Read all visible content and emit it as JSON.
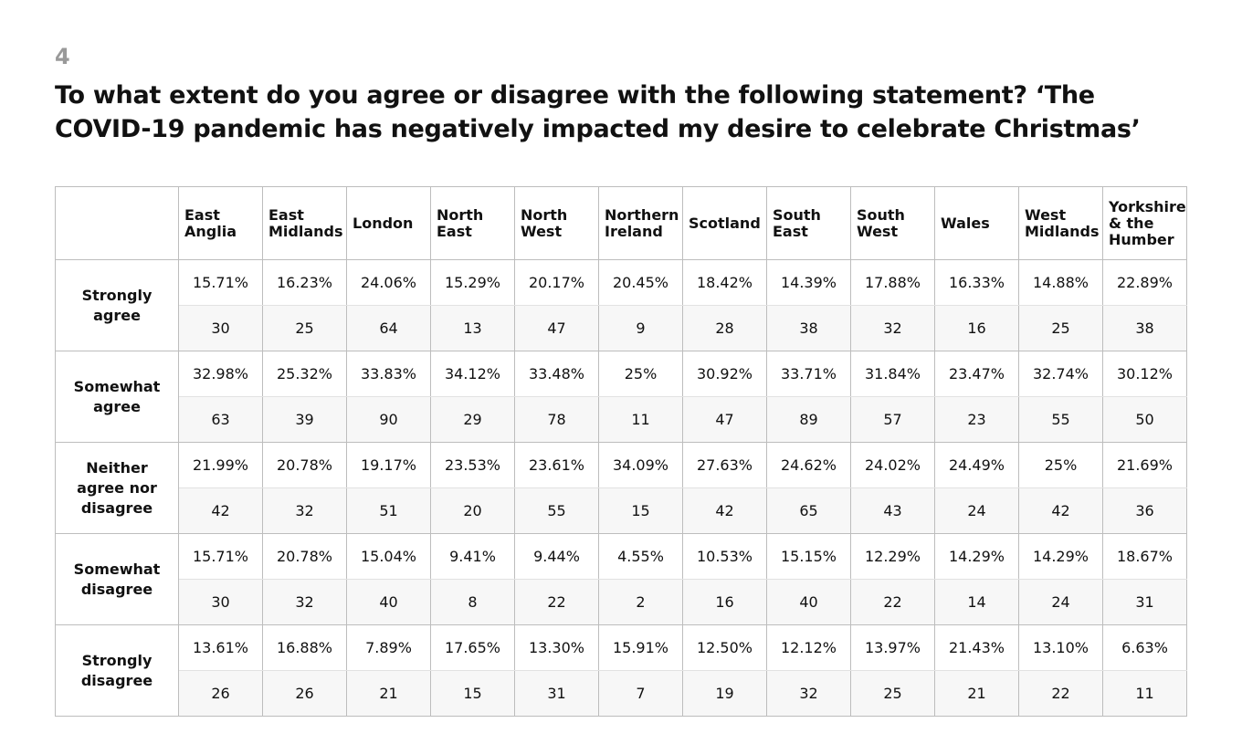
{
  "header": {
    "number": "4",
    "title": "To what extent do you agree or disagree with the following statement? ‘The COVID-19 pandemic has negatively impacted my desire to celebrate Christmas’"
  },
  "table": {
    "columns": [
      "East Anglia",
      "East Midlands",
      "London",
      "North East",
      "North West",
      "Northern Ireland",
      "Scotland",
      "South East",
      "South West",
      "Wales",
      "West Midlands",
      "Yorkshire & the Humber"
    ],
    "rows": [
      {
        "label": "Strongly agree",
        "percents": [
          "15.71%",
          "16.23%",
          "24.06%",
          "15.29%",
          "20.17%",
          "20.45%",
          "18.42%",
          "14.39%",
          "17.88%",
          "16.33%",
          "14.88%",
          "22.89%"
        ],
        "counts": [
          30,
          25,
          64,
          13,
          47,
          9,
          28,
          38,
          32,
          16,
          25,
          38
        ]
      },
      {
        "label": "Somewhat agree",
        "percents": [
          "32.98%",
          "25.32%",
          "33.83%",
          "34.12%",
          "33.48%",
          "25%",
          "30.92%",
          "33.71%",
          "31.84%",
          "23.47%",
          "32.74%",
          "30.12%"
        ],
        "counts": [
          63,
          39,
          90,
          29,
          78,
          11,
          47,
          89,
          57,
          23,
          55,
          50
        ]
      },
      {
        "label": "Neither agree nor disagree",
        "percents": [
          "21.99%",
          "20.78%",
          "19.17%",
          "23.53%",
          "23.61%",
          "34.09%",
          "27.63%",
          "24.62%",
          "24.02%",
          "24.49%",
          "25%",
          "21.69%"
        ],
        "counts": [
          42,
          32,
          51,
          20,
          55,
          15,
          42,
          65,
          43,
          24,
          42,
          36
        ]
      },
      {
        "label": "Somewhat disagree",
        "percents": [
          "15.71%",
          "20.78%",
          "15.04%",
          "9.41%",
          "9.44%",
          "4.55%",
          "10.53%",
          "15.15%",
          "12.29%",
          "14.29%",
          "14.29%",
          "18.67%"
        ],
        "counts": [
          30,
          32,
          40,
          8,
          22,
          2,
          16,
          40,
          22,
          14,
          24,
          31
        ]
      },
      {
        "label": "Strongly disagree",
        "percents": [
          "13.61%",
          "16.88%",
          "7.89%",
          "17.65%",
          "13.30%",
          "15.91%",
          "12.50%",
          "12.12%",
          "13.97%",
          "21.43%",
          "13.10%",
          "6.63%"
        ],
        "counts": [
          26,
          26,
          21,
          15,
          31,
          7,
          19,
          32,
          25,
          21,
          22,
          11
        ]
      }
    ]
  }
}
